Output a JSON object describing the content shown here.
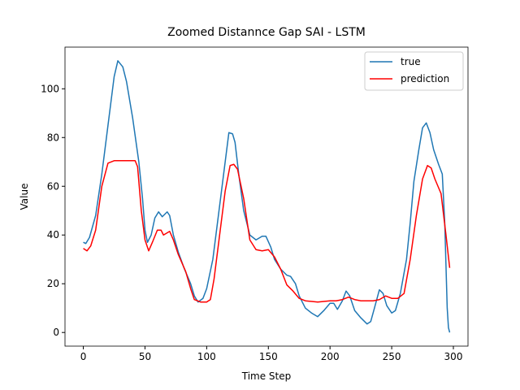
{
  "chart_data": {
    "type": "line",
    "title": "Zoomed Distannce Gap SAI - LSTM",
    "xlabel": "Time Step",
    "ylabel": "Value",
    "xlim": [
      -14.85,
      311.85
    ],
    "ylim": [
      -5.6,
      117.1
    ],
    "xticks": [
      0,
      50,
      100,
      150,
      200,
      250,
      300
    ],
    "yticks": [
      0,
      20,
      40,
      60,
      80,
      100
    ],
    "legend": "upper right",
    "series": [
      {
        "name": "true",
        "color": "#1f77b4",
        "x": [
          0,
          2,
          5,
          10,
          15,
          20,
          25,
          28,
          32,
          35,
          40,
          45,
          48,
          50,
          52,
          55,
          58,
          61,
          64,
          68,
          70,
          73,
          77,
          82,
          87,
          90,
          93,
          97,
          100,
          105,
          110,
          115,
          118,
          121,
          123,
          126,
          130,
          135,
          140,
          145,
          148,
          152,
          155,
          160,
          165,
          168,
          172,
          175,
          180,
          185,
          190,
          195,
          200,
          203,
          206,
          210,
          213,
          216,
          220,
          225,
          230,
          233,
          236,
          240,
          243,
          246,
          250,
          253,
          257,
          262,
          265,
          268,
          272,
          275,
          278,
          281,
          284,
          288,
          291,
          293,
          295,
          296,
          297
        ],
        "values": [
          37,
          36.5,
          39,
          48,
          65,
          85,
          105,
          111.5,
          109,
          103,
          88,
          70,
          55,
          42,
          37,
          40,
          47,
          49.5,
          47.5,
          49.5,
          48,
          40,
          33,
          26,
          20,
          15,
          12.5,
          14,
          18,
          30,
          50,
          70,
          82,
          81.5,
          78,
          65,
          50,
          40,
          38,
          39.5,
          39.5,
          35,
          30,
          26,
          23.5,
          23,
          20,
          15,
          10,
          8,
          6.5,
          9,
          12,
          12,
          9.5,
          13,
          17,
          15,
          9,
          6,
          3.5,
          4.5,
          10,
          17.5,
          16,
          11,
          8,
          9,
          16,
          30,
          45,
          62,
          75,
          84,
          86,
          82,
          75,
          69,
          65,
          45,
          10,
          2,
          0
        ]
      },
      {
        "name": "prediction",
        "color": "#ff0000",
        "x": [
          0,
          3,
          6,
          10,
          15,
          20,
          25,
          30,
          35,
          42,
          44,
          47,
          50,
          53,
          56,
          60,
          63,
          65,
          70,
          73,
          77,
          83,
          87,
          90,
          95,
          100,
          103,
          106,
          110,
          115,
          119,
          122,
          125,
          130,
          135,
          140,
          145,
          150,
          155,
          160,
          165,
          170,
          175,
          180,
          190,
          200,
          205,
          210,
          215,
          220,
          225,
          235,
          240,
          245,
          250,
          255,
          260,
          265,
          270,
          275,
          279,
          282,
          285,
          290,
          294,
          297
        ],
        "values": [
          34.5,
          33.5,
          35.5,
          42,
          60,
          69.5,
          70.5,
          70.5,
          70.5,
          70.5,
          68,
          50,
          38,
          33.5,
          37,
          42,
          42,
          40,
          41.5,
          38,
          32,
          25,
          18,
          13.5,
          12.5,
          12.5,
          13.5,
          22,
          38,
          58,
          68.5,
          69,
          67,
          55,
          38,
          34,
          33.5,
          34,
          31,
          26,
          19.5,
          17,
          14,
          13,
          12.5,
          13,
          13,
          13.5,
          14.5,
          13.5,
          13,
          13,
          13.5,
          15,
          14,
          14,
          16,
          30,
          48,
          63,
          68.5,
          67.5,
          63,
          57,
          40,
          26.5
        ]
      }
    ]
  }
}
